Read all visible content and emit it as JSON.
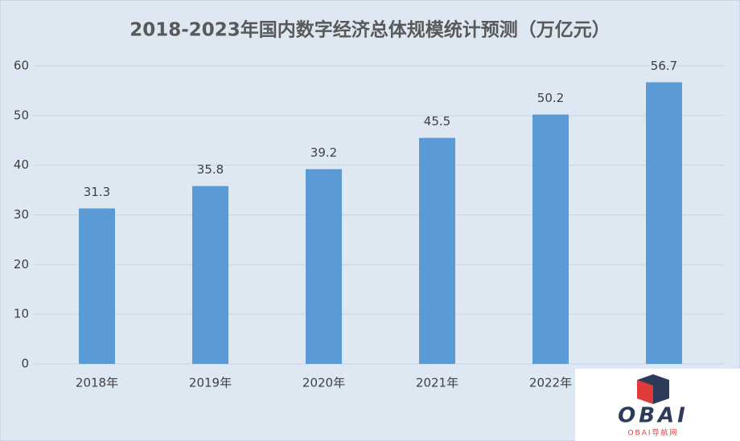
{
  "chart_data": {
    "type": "bar",
    "title": "2018-2023年国内数字经济总体规模统计预测（万亿元）",
    "categories": [
      "2018年",
      "2019年",
      "2020年",
      "2021年",
      "2022年",
      null
    ],
    "values": [
      31.3,
      35.8,
      39.2,
      45.5,
      50.2,
      56.7
    ],
    "color": "#5b9bd5",
    "ylim": [
      0,
      60
    ],
    "yticks": [
      0,
      10,
      20,
      30,
      40,
      50,
      60
    ],
    "grid": true
  },
  "watermark": {
    "logo": "OBAI",
    "caption": "OBAI导航网"
  }
}
